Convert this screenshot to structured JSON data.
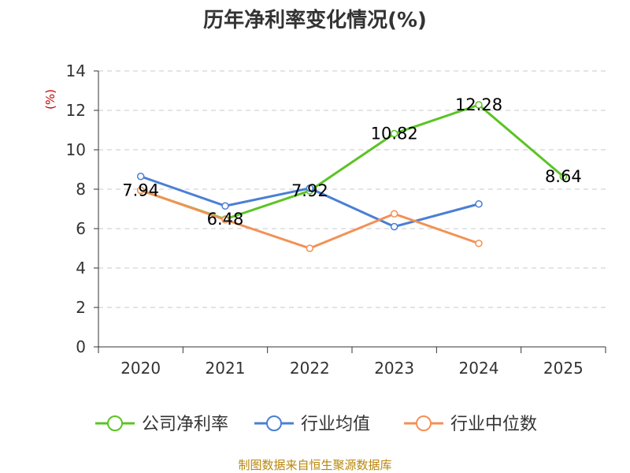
{
  "chart_data": {
    "type": "line",
    "title": "历年净利率变化情况(%)",
    "ylabel": "(%)",
    "categories": [
      "2020",
      "2021",
      "2022",
      "2023",
      "2024",
      "2025"
    ],
    "ylim": [
      0,
      14
    ],
    "yticks": [
      "0",
      "2",
      "4",
      "6",
      "8",
      "10",
      "12",
      "14"
    ],
    "grid": true,
    "legend_position": "bottom",
    "series": [
      {
        "name": "公司净利率",
        "color": "#5bc424",
        "values": [
          7.94,
          6.48,
          7.92,
          10.82,
          12.28,
          8.64
        ],
        "labels": [
          "7.94",
          "6.48",
          "7.92",
          "10.82",
          "12.28",
          "8.64"
        ]
      },
      {
        "name": "行业均值",
        "color": "#4a7fd4",
        "values": [
          8.65,
          7.15,
          8.05,
          6.1,
          7.25,
          null
        ]
      },
      {
        "name": "行业中位数",
        "color": "#f39155",
        "values": [
          7.95,
          6.45,
          5.0,
          6.75,
          5.25,
          null
        ]
      }
    ]
  },
  "footer": {
    "source": "制图数据来自恒生聚源数据库"
  }
}
